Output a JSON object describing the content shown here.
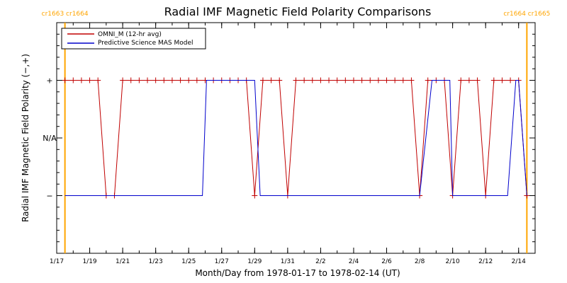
{
  "chart_data": {
    "type": "line",
    "title": "Radial IMF Magnetic Field Polarity Comparisons",
    "xlabel": "Month/Day from 1978-01-17 to 1978-02-14 (UT)",
    "ylabel": "Radial IMF Magnetic Field Polarity (−,+)",
    "xlim": [
      "1978-01-17",
      "1978-02-15"
    ],
    "xticks": [
      {
        "date": "1978-01-17",
        "label": "1/17"
      },
      {
        "date": "1978-01-19",
        "label": "1/19"
      },
      {
        "date": "1978-01-21",
        "label": "1/21"
      },
      {
        "date": "1978-01-23",
        "label": "1/23"
      },
      {
        "date": "1978-01-25",
        "label": "1/25"
      },
      {
        "date": "1978-01-27",
        "label": "1/27"
      },
      {
        "date": "1978-01-29",
        "label": "1/29"
      },
      {
        "date": "1978-01-31",
        "label": "1/31"
      },
      {
        "date": "1978-02-02",
        "label": "2/2"
      },
      {
        "date": "1978-02-04",
        "label": "2/4"
      },
      {
        "date": "1978-02-06",
        "label": "2/6"
      },
      {
        "date": "1978-02-08",
        "label": "2/8"
      },
      {
        "date": "1978-02-10",
        "label": "2/10"
      },
      {
        "date": "1978-02-12",
        "label": "2/12"
      },
      {
        "date": "1978-02-14",
        "label": "2/14"
      }
    ],
    "yticks": [
      {
        "value": 1,
        "label": "+"
      },
      {
        "value": 0,
        "label": "N/A"
      },
      {
        "value": -1,
        "label": "−"
      }
    ],
    "ylim": [
      -2,
      2
    ],
    "grid": false,
    "legend_position": "top-left",
    "carrington_markers": [
      {
        "date": "1978-01-17T12:00",
        "label": "cr1663 cr1664",
        "color": "#ffa500"
      },
      {
        "date": "1978-02-14T12:00",
        "label": "cr1664 cr1665",
        "color": "#ffa500"
      }
    ],
    "series": [
      {
        "name": "OMNI_M (12-hr avg)",
        "color": "#c00000",
        "markers": true,
        "points": [
          [
            "1978-01-17T12:00",
            1
          ],
          [
            "1978-01-18T00:00",
            1
          ],
          [
            "1978-01-18T12:00",
            1
          ],
          [
            "1978-01-19T00:00",
            1
          ],
          [
            "1978-01-19T12:00",
            1
          ],
          [
            "1978-01-20T00:00",
            -1
          ],
          [
            "1978-01-20T12:00",
            -1
          ],
          [
            "1978-01-21T00:00",
            1
          ],
          [
            "1978-01-21T12:00",
            1
          ],
          [
            "1978-01-22T00:00",
            1
          ],
          [
            "1978-01-22T12:00",
            1
          ],
          [
            "1978-01-23T00:00",
            1
          ],
          [
            "1978-01-23T12:00",
            1
          ],
          [
            "1978-01-24T00:00",
            1
          ],
          [
            "1978-01-24T12:00",
            1
          ],
          [
            "1978-01-25T00:00",
            1
          ],
          [
            "1978-01-25T12:00",
            1
          ],
          [
            "1978-01-26T00:00",
            1
          ],
          [
            "1978-01-26T12:00",
            1
          ],
          [
            "1978-01-27T00:00",
            1
          ],
          [
            "1978-01-27T12:00",
            1
          ],
          [
            "1978-01-28T00:00",
            1
          ],
          [
            "1978-01-28T12:00",
            1
          ],
          [
            "1978-01-29T00:00",
            -1
          ],
          [
            "1978-01-29T12:00",
            1
          ],
          [
            "1978-01-30T00:00",
            1
          ],
          [
            "1978-01-30T12:00",
            1
          ],
          [
            "1978-01-31T00:00",
            -1
          ],
          [
            "1978-01-31T12:00",
            1
          ],
          [
            "1978-02-01T00:00",
            1
          ],
          [
            "1978-02-01T12:00",
            1
          ],
          [
            "1978-02-02T00:00",
            1
          ],
          [
            "1978-02-02T12:00",
            1
          ],
          [
            "1978-02-03T00:00",
            1
          ],
          [
            "1978-02-03T12:00",
            1
          ],
          [
            "1978-02-04T00:00",
            1
          ],
          [
            "1978-02-04T12:00",
            1
          ],
          [
            "1978-02-05T00:00",
            1
          ],
          [
            "1978-02-05T12:00",
            1
          ],
          [
            "1978-02-06T00:00",
            1
          ],
          [
            "1978-02-06T12:00",
            1
          ],
          [
            "1978-02-07T00:00",
            1
          ],
          [
            "1978-02-07T12:00",
            1
          ],
          [
            "1978-02-08T00:00",
            -1
          ],
          [
            "1978-02-08T12:00",
            1
          ],
          [
            "1978-02-09T00:00",
            1
          ],
          [
            "1978-02-09T12:00",
            1
          ],
          [
            "1978-02-10T00:00",
            -1
          ],
          [
            "1978-02-10T12:00",
            1
          ],
          [
            "1978-02-11T00:00",
            1
          ],
          [
            "1978-02-11T12:00",
            1
          ],
          [
            "1978-02-12T00:00",
            -1
          ],
          [
            "1978-02-12T12:00",
            1
          ],
          [
            "1978-02-13T00:00",
            1
          ],
          [
            "1978-02-13T12:00",
            1
          ],
          [
            "1978-02-14T00:00",
            1
          ],
          [
            "1978-02-14T12:00",
            -1
          ]
        ]
      },
      {
        "name": "Predictive Science MAS Model",
        "color": "#0000cc",
        "markers": false,
        "points": [
          [
            "1978-01-17T12:00",
            -1
          ],
          [
            "1978-01-25T20:00",
            -1
          ],
          [
            "1978-01-26T02:00",
            1
          ],
          [
            "1978-01-29T00:00",
            1
          ],
          [
            "1978-01-29T08:00",
            -1
          ],
          [
            "1978-02-08T00:00",
            -1
          ],
          [
            "1978-02-08T18:00",
            1
          ],
          [
            "1978-02-09T20:00",
            1
          ],
          [
            "1978-02-10T00:00",
            -1
          ],
          [
            "1978-02-13T08:00",
            -1
          ],
          [
            "1978-02-13T20:00",
            1
          ],
          [
            "1978-02-14T00:00",
            1
          ],
          [
            "1978-02-14T12:00",
            -1
          ]
        ]
      }
    ]
  }
}
